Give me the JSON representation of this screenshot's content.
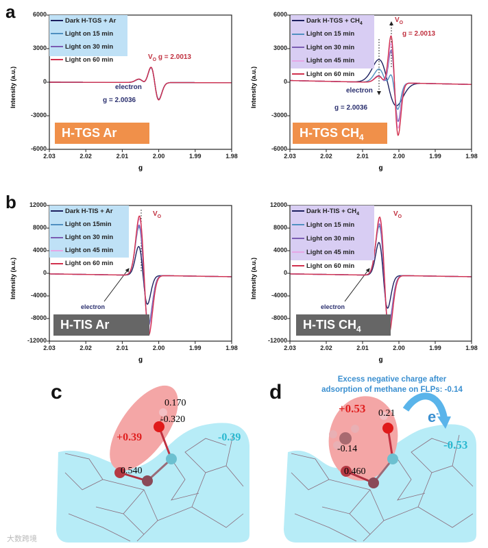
{
  "panels": {
    "a": "a",
    "b": "b",
    "c": "c",
    "d": "d"
  },
  "colors": {
    "dark": "#1c1f5e",
    "m15": "#4f8fc0",
    "m30": "#7a5cb2",
    "m45": "#e6a6e6",
    "m60": "#d12f4c",
    "ar_legend_bg": "#bfe1f6",
    "ch4_legend_bg": "#d8cdf3",
    "tgs_tag": "#f0904a",
    "tis_tag": "#666666",
    "cyan_region": "#b7ecf7",
    "pink_region": "#f4a6a6"
  },
  "chart_data": [
    {
      "type": "line",
      "title": "",
      "tag": {
        "main": "H-TGS Ar",
        "sub": ""
      },
      "xlabel": "g",
      "ylabel": "Intensity (a.u.)",
      "xlim": [
        2.03,
        1.98
      ],
      "ylim": [
        -6000,
        6000
      ],
      "xticks": [
        "2.03",
        "2.02",
        "2.01",
        "2.00",
        "1.99",
        "1.98"
      ],
      "yticks": [
        "6000",
        "3000",
        "0",
        "-3000",
        "-6000"
      ],
      "legend": {
        "placement": "top-left",
        "entries": [
          {
            "main": "Dark H-TGS + Ar",
            "sub": ""
          },
          {
            "main": "Light on 15 min",
            "sub": ""
          },
          {
            "main": "Light on 30 min",
            "sub": ""
          },
          {
            "main": "Light on 60 min",
            "sub": ""
          }
        ]
      },
      "annotations": {
        "vo": "V",
        "vo_sub": "O",
        "vo_g": "g = 2.0013",
        "electron": "electron",
        "electron_g": "g = 2.0036"
      },
      "series": [
        {
          "name": "Dark H-TGS + Ar",
          "color_key": "dark",
          "baseline": [
            0,
            -50
          ],
          "components": [
            {
              "g": 2.0043,
              "amp": 280,
              "w": 0.0012
            },
            {
              "g": 2.0011,
              "amp": 1500,
              "w": 0.0011
            }
          ]
        },
        {
          "name": "Light on 15 min",
          "color_key": "m15",
          "baseline": [
            0,
            -50
          ],
          "components": [
            {
              "g": 2.0043,
              "amp": 290,
              "w": 0.0012
            },
            {
              "g": 2.0011,
              "amp": 1520,
              "w": 0.0011
            }
          ]
        },
        {
          "name": "Light on 30 min",
          "color_key": "m30",
          "baseline": [
            0,
            -50
          ],
          "components": [
            {
              "g": 2.0043,
              "amp": 300,
              "w": 0.0012
            },
            {
              "g": 2.0011,
              "amp": 1540,
              "w": 0.0011
            }
          ]
        },
        {
          "name": "Light on 60 min",
          "color_key": "m60",
          "baseline": [
            0,
            -50
          ],
          "components": [
            {
              "g": 2.0043,
              "amp": 300,
              "w": 0.0012
            },
            {
              "g": 2.0011,
              "amp": 1550,
              "w": 0.0011
            }
          ]
        }
      ]
    },
    {
      "type": "line",
      "title": "",
      "tag": {
        "main": "H-TGS CH",
        "sub": "4"
      },
      "xlabel": "g",
      "ylabel": "Intensity (a.u.)",
      "xlim": [
        2.03,
        1.98
      ],
      "ylim": [
        -6000,
        6000
      ],
      "xticks": [
        "2.03",
        "2.02",
        "2.01",
        "2.00",
        "1.99",
        "1.98"
      ],
      "yticks": [
        "6000",
        "3000",
        "0",
        "-3000",
        "-6000"
      ],
      "legend": {
        "placement": "top-left",
        "entries": [
          {
            "main": "Dark H-TGS + CH",
            "sub": "4"
          },
          {
            "main": "Light on 15 min",
            "sub": ""
          },
          {
            "main": "Light on 30 min",
            "sub": ""
          },
          {
            "main": "Light on 45 min",
            "sub": ""
          },
          {
            "main": "Light on 60 min",
            "sub": ""
          }
        ]
      },
      "annotations": {
        "vo": "V",
        "vo_sub": "O",
        "vo_g": "g = 2.0013",
        "electron": "electron",
        "electron_g": "g = 2.0036"
      },
      "series": [
        {
          "name": "Dark H-TGS + CH4",
          "color_key": "dark",
          "baseline": [
            150,
            -200
          ],
          "components": [
            {
              "g": 2.0031,
              "amp": 2050,
              "w": 0.0024
            }
          ]
        },
        {
          "name": "Light on 15 min",
          "color_key": "m15",
          "baseline": [
            150,
            -200
          ],
          "components": [
            {
              "g": 2.0038,
              "amp": 1200,
              "w": 0.0017
            },
            {
              "g": 2.0012,
              "amp": 1900,
              "w": 0.001
            }
          ]
        },
        {
          "name": "Light on 30 min",
          "color_key": "m30",
          "baseline": [
            150,
            -200
          ],
          "components": [
            {
              "g": 2.0042,
              "amp": 600,
              "w": 0.0014
            },
            {
              "g": 2.0012,
              "amp": 3400,
              "w": 0.001
            }
          ]
        },
        {
          "name": "Light on 45 min",
          "color_key": "m45",
          "baseline": [
            150,
            -200
          ],
          "components": [
            {
              "g": 2.0042,
              "amp": 550,
              "w": 0.0014
            },
            {
              "g": 2.0012,
              "amp": 4000,
              "w": 0.001
            }
          ]
        },
        {
          "name": "Light on 60 min",
          "color_key": "m60",
          "baseline": [
            150,
            -200
          ],
          "components": [
            {
              "g": 2.0042,
              "amp": 550,
              "w": 0.0014
            },
            {
              "g": 2.0012,
              "amp": 4650,
              "w": 0.001
            }
          ]
        }
      ]
    },
    {
      "type": "line",
      "title": "",
      "tag": {
        "main": "H-TIS Ar",
        "sub": ""
      },
      "xlabel": "g",
      "ylabel": "Intensity (a.u.)",
      "xlim": [
        2.03,
        1.98
      ],
      "ylim": [
        -12000,
        12000
      ],
      "xticks": [
        "2.03",
        "2.02",
        "2.01",
        "2.00",
        "1.99",
        "1.98"
      ],
      "yticks": [
        "12000",
        "8000",
        "4000",
        "0",
        "-4000",
        "-8000",
        "-12000"
      ],
      "legend": {
        "placement": "top-left",
        "entries": [
          {
            "main": "Dark H-TIS + Ar",
            "sub": ""
          },
          {
            "main": "Light on 15min",
            "sub": ""
          },
          {
            "main": "Light on 30 min",
            "sub": ""
          },
          {
            "main": "Light on 45 min",
            "sub": ""
          },
          {
            "main": "Light on 60 min",
            "sub": ""
          }
        ]
      },
      "annotations": {
        "vo": "V",
        "vo_sub": "O",
        "electron": "electron"
      },
      "series": [
        {
          "name": "Dark H-TIS + Ar",
          "color_key": "dark",
          "baseline": [
            -100,
            -600
          ],
          "components": [
            {
              "g": 2.0043,
              "amp": 5100,
              "w": 0.0012
            }
          ]
        },
        {
          "name": "Light on 15min",
          "color_key": "m15",
          "baseline": [
            -100,
            -600
          ],
          "components": [
            {
              "g": 2.0041,
              "amp": 8600,
              "w": 0.0013
            }
          ]
        },
        {
          "name": "Light on 30 min",
          "color_key": "m30",
          "baseline": [
            -100,
            -600
          ],
          "components": [
            {
              "g": 2.0041,
              "amp": 8900,
              "w": 0.0013
            }
          ]
        },
        {
          "name": "Light on 45 min",
          "color_key": "m45",
          "baseline": [
            -100,
            -600
          ],
          "components": [
            {
              "g": 2.004,
              "amp": 10000,
              "w": 0.0013
            }
          ]
        },
        {
          "name": "Light on 60 min",
          "color_key": "m60",
          "baseline": [
            -100,
            -600
          ],
          "components": [
            {
              "g": 2.004,
              "amp": 10500,
              "w": 0.0013
            }
          ]
        }
      ]
    },
    {
      "type": "line",
      "title": "",
      "tag": {
        "main": "H-TIS CH",
        "sub": "4"
      },
      "xlabel": "g",
      "ylabel": "Intensity (a.u.)",
      "xlim": [
        2.03,
        1.98
      ],
      "ylim": [
        -12000,
        12000
      ],
      "xticks": [
        "2.03",
        "2.02",
        "2.01",
        "2.00",
        "1.99",
        "1.98"
      ],
      "yticks": [
        "12000",
        "8000",
        "4000",
        "0",
        "-4000",
        "-8000",
        "-12000"
      ],
      "legend": {
        "placement": "top-left",
        "entries": [
          {
            "main": "Dark H-TIS + CH",
            "sub": "4"
          },
          {
            "main": "Light on 15 min",
            "sub": ""
          },
          {
            "main": "Light on 30 min",
            "sub": ""
          },
          {
            "main": "Light on 45 min",
            "sub": ""
          },
          {
            "main": "Light on 60 min",
            "sub": ""
          }
        ]
      },
      "annotations": {
        "vo": "V",
        "vo_sub": "O",
        "electron": "electron"
      },
      "series": [
        {
          "name": "Dark H-TIS + CH4",
          "color_key": "dark",
          "baseline": [
            -100,
            -600
          ],
          "components": [
            {
              "g": 2.0043,
              "amp": 5800,
              "w": 0.0012
            }
          ]
        },
        {
          "name": "Light on 15 min",
          "color_key": "m15",
          "baseline": [
            -100,
            -600
          ],
          "components": [
            {
              "g": 2.0041,
              "amp": 8700,
              "w": 0.0013
            }
          ]
        },
        {
          "name": "Light on 30 min",
          "color_key": "m30",
          "baseline": [
            -100,
            -600
          ],
          "components": [
            {
              "g": 2.0041,
              "amp": 9100,
              "w": 0.0013
            }
          ]
        },
        {
          "name": "Light on 45 min",
          "color_key": "m45",
          "baseline": [
            -100,
            -600
          ],
          "components": [
            {
              "g": 2.004,
              "amp": 9800,
              "w": 0.0013
            }
          ]
        },
        {
          "name": "Light on 60 min",
          "color_key": "m60",
          "baseline": [
            -100,
            -600
          ],
          "components": [
            {
              "g": 2.004,
              "amp": 10300,
              "w": 0.0013
            }
          ]
        }
      ]
    }
  ],
  "c": {
    "h_charge": "0.170",
    "o_charge": "-0.320",
    "pos_region": "+0.39",
    "neg_region": "-0.39",
    "site_charge": "0.540"
  },
  "d": {
    "header_line1": "Excess negative charge after",
    "header_line2": "adsorption of methane on FLPs:  -0.14",
    "pos_region": "+0.53",
    "h_charge": "0.21",
    "ch4_charge": "-0.14",
    "neg_region": "-0.53",
    "site_charge": "0.460",
    "electron": "e",
    "electron_sup": "-"
  },
  "watermark": "大数跨境"
}
